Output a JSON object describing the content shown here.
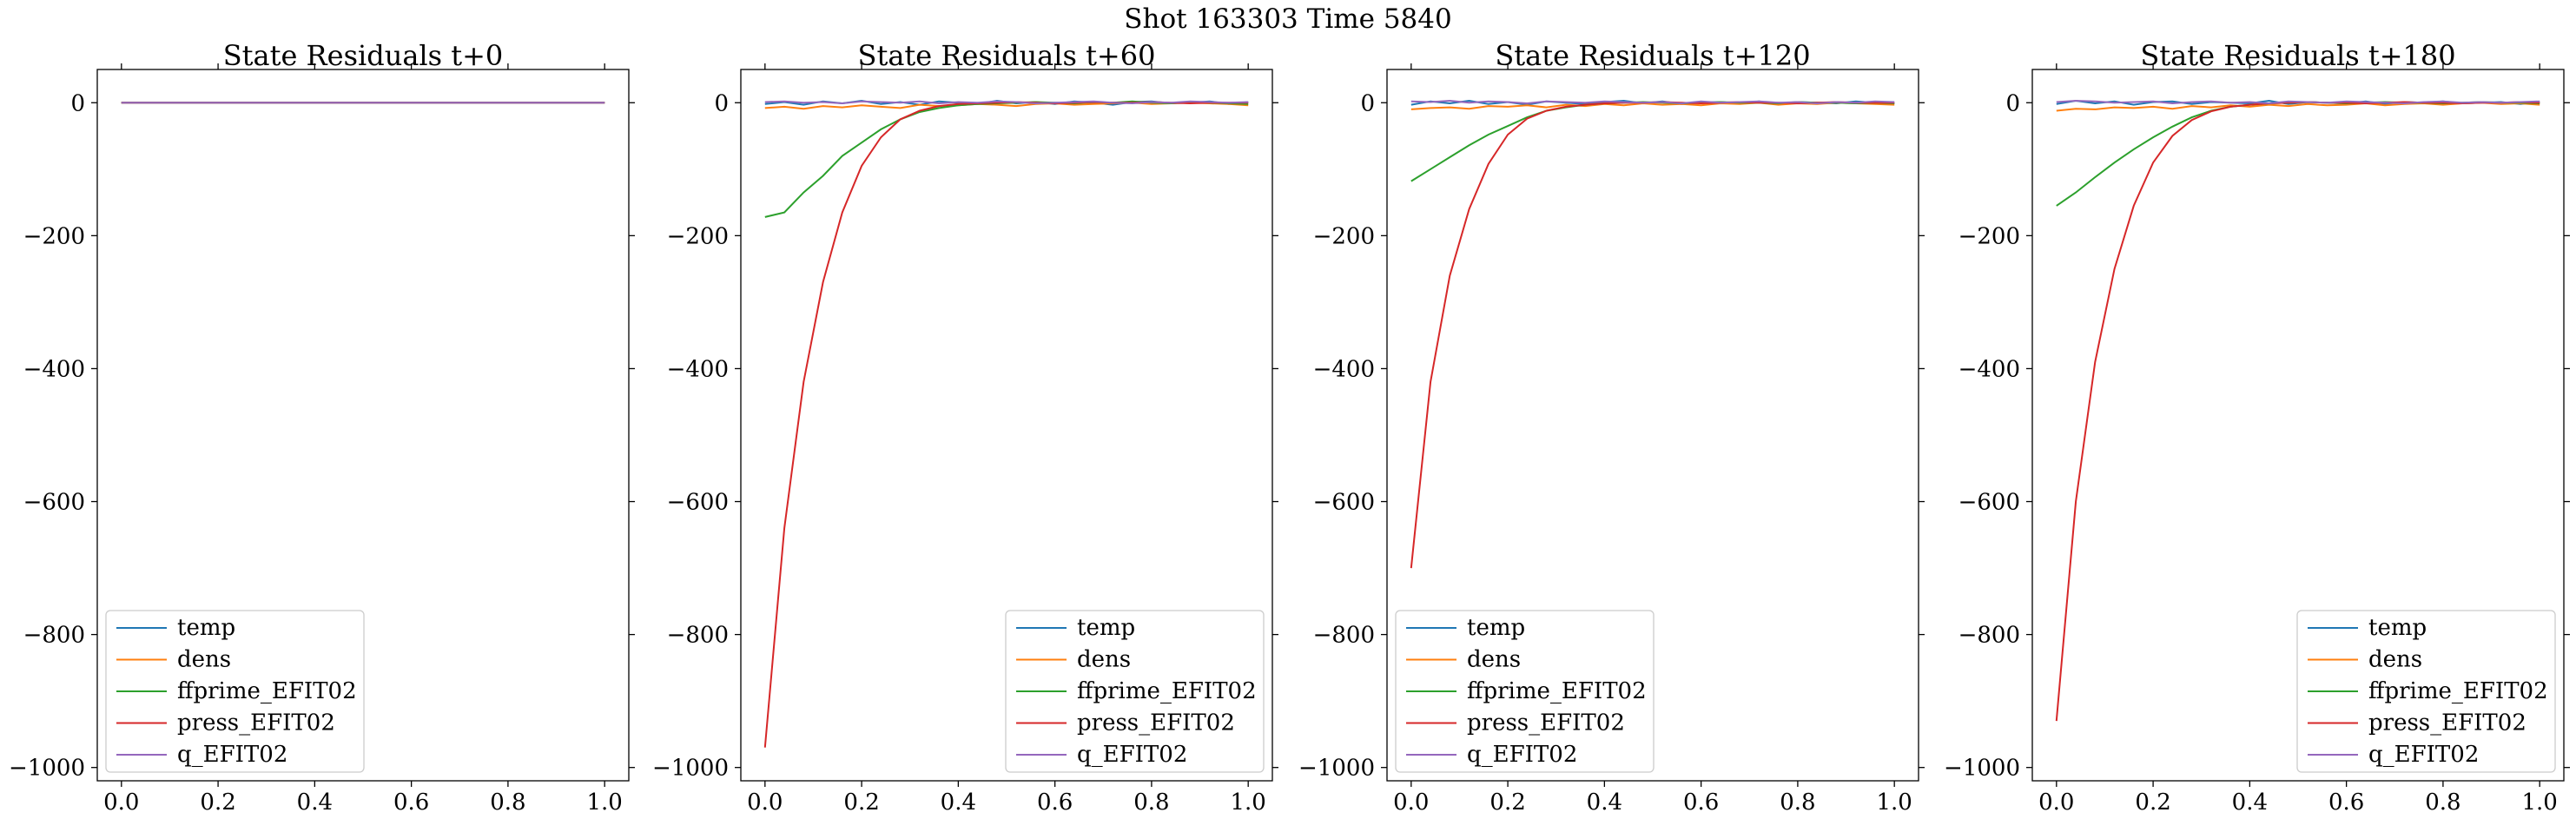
{
  "chart_data": {
    "type": "line",
    "title": "Shot 163303   Time 5840",
    "legend_placement": "lower-left",
    "series_colors": {
      "temp": "#1f77b4",
      "dens": "#ff7f0e",
      "ffprime_EFIT02": "#2ca02c",
      "press_EFIT02": "#d62728",
      "q_EFIT02": "#9467bd"
    },
    "panels": [
      {
        "title": "State Residuals t+0",
        "xlim": [
          -0.05,
          1.05
        ],
        "ylim": [
          -1020,
          50
        ],
        "xticks": [
          "0.0",
          "0.2",
          "0.4",
          "0.6",
          "0.8",
          "1.0"
        ],
        "yticks": [
          "0",
          "−200",
          "−400",
          "−600",
          "−800",
          "−1000"
        ],
        "legend_placement": "lower-left",
        "x": [
          0.0,
          0.04,
          0.08,
          0.12,
          0.16,
          0.2,
          0.24,
          0.28,
          0.32,
          0.36,
          0.4,
          0.44,
          0.48,
          0.52,
          0.56,
          0.6,
          0.64,
          0.68,
          0.72,
          0.76,
          0.8,
          0.84,
          0.88,
          0.92,
          0.96,
          1.0
        ],
        "series": [
          {
            "name": "temp",
            "values": [
              0,
              0,
              0,
              0,
              0,
              0,
              0,
              0,
              0,
              0,
              0,
              0,
              0,
              0,
              0,
              0,
              0,
              0,
              0,
              0,
              0,
              0,
              0,
              0,
              0,
              0
            ]
          },
          {
            "name": "dens",
            "values": [
              0,
              0,
              0,
              0,
              0,
              0,
              0,
              0,
              0,
              0,
              0,
              0,
              0,
              0,
              0,
              0,
              0,
              0,
              0,
              0,
              0,
              0,
              0,
              0,
              0,
              0
            ]
          },
          {
            "name": "ffprime_EFIT02",
            "values": [
              0,
              0,
              0,
              0,
              0,
              0,
              0,
              0,
              0,
              0,
              0,
              0,
              0,
              0,
              0,
              0,
              0,
              0,
              0,
              0,
              0,
              0,
              0,
              0,
              0,
              0
            ]
          },
          {
            "name": "press_EFIT02",
            "values": [
              0,
              0,
              0,
              0,
              0,
              0,
              0,
              0,
              0,
              0,
              0,
              0,
              0,
              0,
              0,
              0,
              0,
              0,
              0,
              0,
              0,
              0,
              0,
              0,
              0,
              0
            ]
          },
          {
            "name": "q_EFIT02",
            "values": [
              0,
              0,
              0,
              0,
              0,
              0,
              0,
              0,
              0,
              0,
              0,
              0,
              0,
              0,
              0,
              0,
              0,
              0,
              0,
              0,
              0,
              0,
              0,
              0,
              0,
              0
            ]
          }
        ]
      },
      {
        "title": "State Residuals t+60",
        "xlim": [
          -0.05,
          1.05
        ],
        "ylim": [
          -1020,
          50
        ],
        "xticks": [
          "0.0",
          "0.2",
          "0.4",
          "0.6",
          "0.8",
          "1.0"
        ],
        "yticks": [
          "0",
          "−200",
          "−400",
          "−600",
          "−800",
          "−1000"
        ],
        "legend_placement": "lower-right",
        "x": [
          0.0,
          0.04,
          0.08,
          0.12,
          0.16,
          0.2,
          0.24,
          0.28,
          0.32,
          0.36,
          0.4,
          0.44,
          0.48,
          0.52,
          0.56,
          0.6,
          0.64,
          0.68,
          0.72,
          0.76,
          0.8,
          0.84,
          0.88,
          0.92,
          0.96,
          1.0
        ],
        "series": [
          {
            "name": "temp",
            "values": [
              -2,
              1,
              -3,
              2,
              -1,
              3,
              -2,
              1,
              -3,
              2,
              0,
              -2,
              3,
              -1,
              1,
              -2,
              2,
              0,
              -3,
              1,
              2,
              -1,
              0,
              2,
              -2,
              1
            ]
          },
          {
            "name": "dens",
            "values": [
              -8,
              -6,
              -9,
              -5,
              -7,
              -4,
              -6,
              -8,
              -3,
              -5,
              -4,
              -2,
              -3,
              -5,
              -2,
              -1,
              -3,
              -2,
              -1,
              0,
              -2,
              -1,
              0,
              -1,
              -2,
              -4
            ]
          },
          {
            "name": "ffprime_EFIT02",
            "values": [
              -172,
              -165,
              -135,
              -110,
              -80,
              -60,
              -40,
              -25,
              -14,
              -8,
              -4,
              -2,
              -1,
              0,
              1,
              0,
              -1,
              1,
              0,
              2,
              0,
              -1,
              1,
              0,
              -1,
              -2
            ]
          },
          {
            "name": "press_EFIT02",
            "values": [
              -970,
              -640,
              -420,
              -270,
              -165,
              -95,
              -52,
              -25,
              -12,
              -5,
              -2,
              -1,
              0,
              1,
              0,
              -1,
              0,
              1,
              0,
              0,
              1,
              0,
              -1,
              0,
              0,
              0
            ]
          },
          {
            "name": "q_EFIT02",
            "values": [
              1,
              2,
              0,
              1,
              -1,
              2,
              1,
              0,
              2,
              -1,
              1,
              0,
              2,
              1,
              -1,
              0,
              1,
              2,
              0,
              -1,
              1,
              0,
              2,
              1,
              0,
              1
            ]
          }
        ]
      },
      {
        "title": "State Residuals t+120",
        "xlim": [
          -0.05,
          1.05
        ],
        "ylim": [
          -1020,
          50
        ],
        "xticks": [
          "0.0",
          "0.2",
          "0.4",
          "0.6",
          "0.8",
          "1.0"
        ],
        "yticks": [
          "0",
          "−200",
          "−400",
          "−600",
          "−800",
          "−1000"
        ],
        "legend_placement": "lower-left",
        "x": [
          0.0,
          0.04,
          0.08,
          0.12,
          0.16,
          0.2,
          0.24,
          0.28,
          0.32,
          0.36,
          0.4,
          0.44,
          0.48,
          0.52,
          0.56,
          0.6,
          0.64,
          0.68,
          0.72,
          0.76,
          0.8,
          0.84,
          0.88,
          0.92,
          0.96,
          1.0
        ],
        "series": [
          {
            "name": "temp",
            "values": [
              -3,
              2,
              -1,
              3,
              -2,
              1,
              -3,
              2,
              0,
              -2,
              1,
              3,
              -1,
              2,
              -2,
              0,
              1,
              -1,
              2,
              -2,
              1,
              0,
              -1,
              2,
              0,
              -1
            ]
          },
          {
            "name": "dens",
            "values": [
              -10,
              -8,
              -7,
              -9,
              -5,
              -6,
              -4,
              -7,
              -3,
              -5,
              -2,
              -4,
              -1,
              -3,
              -2,
              -4,
              -1,
              -2,
              0,
              -3,
              -1,
              -2,
              0,
              -1,
              -2,
              -3
            ]
          },
          {
            "name": "ffprime_EFIT02",
            "values": [
              -118,
              -100,
              -82,
              -64,
              -48,
              -35,
              -22,
              -12,
              -7,
              -3,
              -1,
              0,
              1,
              0,
              -1,
              0,
              1,
              0,
              0,
              -1,
              1,
              0,
              0,
              -1,
              0,
              -1
            ]
          },
          {
            "name": "press_EFIT02",
            "values": [
              -700,
              -420,
              -260,
              -160,
              -92,
              -48,
              -24,
              -12,
              -6,
              -3,
              -1,
              0,
              0,
              1,
              0,
              -1,
              0,
              1,
              0,
              0,
              -1,
              0,
              1,
              0,
              0,
              0
            ]
          },
          {
            "name": "q_EFIT02",
            "values": [
              2,
              1,
              3,
              0,
              2,
              1,
              -1,
              2,
              1,
              0,
              2,
              1,
              0,
              1,
              -1,
              2,
              0,
              1,
              2,
              0,
              1,
              -1,
              1,
              0,
              2,
              1
            ]
          }
        ]
      },
      {
        "title": "State Residuals t+180",
        "xlim": [
          -0.05,
          1.05
        ],
        "ylim": [
          -1020,
          50
        ],
        "xticks": [
          "0.0",
          "0.2",
          "0.4",
          "0.6",
          "0.8",
          "1.0"
        ],
        "yticks": [
          "0",
          "−200",
          "−400",
          "−600",
          "−800",
          "−1000"
        ],
        "legend_placement": "lower-right",
        "x": [
          0.0,
          0.04,
          0.08,
          0.12,
          0.16,
          0.2,
          0.24,
          0.28,
          0.32,
          0.36,
          0.4,
          0.44,
          0.48,
          0.52,
          0.56,
          0.6,
          0.64,
          0.68,
          0.72,
          0.76,
          0.8,
          0.84,
          0.88,
          0.92,
          0.96,
          1.0
        ],
        "series": [
          {
            "name": "temp",
            "values": [
              -2,
              3,
              -1,
              2,
              -3,
              1,
              2,
              -2,
              1,
              0,
              -1,
              3,
              -2,
              1,
              0,
              -1,
              2,
              -2,
              1,
              0,
              2,
              -1,
              0,
              1,
              -2,
              1
            ]
          },
          {
            "name": "dens",
            "values": [
              -12,
              -9,
              -10,
              -7,
              -8,
              -6,
              -9,
              -5,
              -7,
              -4,
              -6,
              -3,
              -5,
              -2,
              -4,
              -3,
              -1,
              -4,
              -2,
              -1,
              -3,
              -1,
              0,
              -2,
              -1,
              -3
            ]
          },
          {
            "name": "ffprime_EFIT02",
            "values": [
              -155,
              -135,
              -112,
              -90,
              -70,
              -52,
              -36,
              -22,
              -12,
              -6,
              -3,
              -1,
              0,
              1,
              0,
              -1,
              0,
              1,
              0,
              0,
              -1,
              0,
              1,
              0,
              0,
              -1
            ]
          },
          {
            "name": "press_EFIT02",
            "values": [
              -930,
              -600,
              -390,
              -250,
              -155,
              -90,
              -50,
              -26,
              -13,
              -6,
              -3,
              -1,
              0,
              1,
              0,
              0,
              -1,
              0,
              1,
              0,
              0,
              -1,
              0,
              0,
              1,
              0
            ]
          },
          {
            "name": "q_EFIT02",
            "values": [
              1,
              3,
              2,
              0,
              1,
              2,
              -1,
              1,
              2,
              0,
              1,
              -1,
              2,
              1,
              0,
              2,
              1,
              0,
              -1,
              1,
              2,
              0,
              1,
              0,
              1,
              2
            ]
          }
        ]
      }
    ]
  }
}
